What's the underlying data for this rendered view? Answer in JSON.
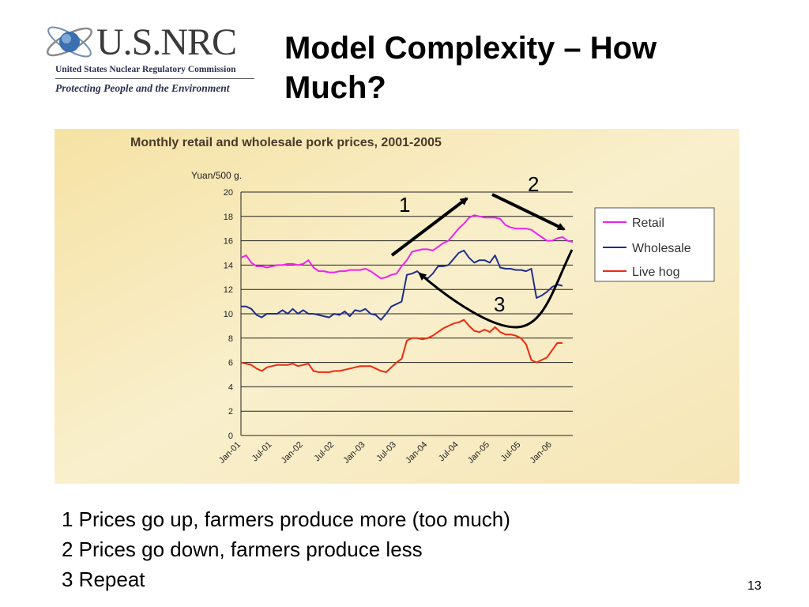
{
  "logo": {
    "main": "U.S.NRC",
    "subtitle": "United States Nuclear Regulatory Commission",
    "tagline": "Protecting People and the Environment"
  },
  "slide": {
    "title": "Model Complexity – How Much?",
    "notes": [
      "1 Prices go up, farmers produce more (too much)",
      "2 Prices go down, farmers produce less",
      "3 Repeat"
    ],
    "page_number": "13"
  },
  "annotations": {
    "arrow_1_label": "1",
    "arrow_2_label": "2",
    "arrow_3_label": "3"
  },
  "colors": {
    "retail": "#ee22ee",
    "wholesale": "#1f2f8c",
    "live_hog": "#ee2a10",
    "panel_bg": "#f7e7b0",
    "gridline": "#222222"
  },
  "chart_data": {
    "type": "line",
    "title": "Monthly retail and wholesale pork prices, 2001-2005",
    "ylabel": "Yuan/500 g.",
    "xlabel": "",
    "ylim": [
      0,
      20
    ],
    "yticks": [
      "0",
      "2",
      "4",
      "6",
      "8",
      "10",
      "12",
      "14",
      "16",
      "18",
      "20"
    ],
    "xtick_labels": [
      "Jan-01",
      "Jul-01",
      "Jan-02",
      "Jul-02",
      "Jan-03",
      "Jul-03",
      "Jan-04",
      "Jul-04",
      "Jan-05",
      "Jul-05",
      "Jan-06"
    ],
    "x_range_months": [
      0,
      64
    ],
    "legend_position": "right",
    "grid": true,
    "series": [
      {
        "name": "Retail",
        "x": [
          0,
          1,
          2,
          3,
          4,
          5,
          6,
          7,
          8,
          9,
          10,
          11,
          12,
          13,
          14,
          15,
          16,
          17,
          18,
          19,
          20,
          21,
          22,
          23,
          24,
          25,
          26,
          27,
          28,
          29,
          30,
          31,
          32,
          33,
          34,
          35,
          36,
          37,
          38,
          39,
          40,
          41,
          42,
          43,
          44,
          45,
          46,
          47,
          48,
          49,
          50,
          51,
          52,
          53,
          54,
          55,
          56,
          57,
          58,
          59,
          60,
          61,
          62,
          63,
          64
        ],
        "values": [
          14.6,
          14.8,
          14.2,
          13.9,
          13.9,
          13.8,
          13.9,
          14.0,
          14.0,
          14.1,
          14.1,
          14.0,
          14.1,
          14.4,
          13.8,
          13.5,
          13.5,
          13.4,
          13.4,
          13.5,
          13.5,
          13.6,
          13.6,
          13.6,
          13.7,
          13.5,
          13.2,
          12.9,
          13.0,
          13.2,
          13.3,
          13.9,
          14.4,
          15.1,
          15.2,
          15.3,
          15.3,
          15.2,
          15.5,
          15.8,
          16.0,
          16.5,
          17.0,
          17.4,
          17.9,
          18.1,
          18.0,
          17.9,
          17.9,
          17.9,
          17.8,
          17.3,
          17.1,
          17.0,
          17.0,
          17.0,
          16.9,
          16.6,
          16.3,
          16.0,
          16.0,
          16.2,
          16.3,
          16.0,
          15.9
        ]
      },
      {
        "name": "Wholesale",
        "x": [
          0,
          1,
          2,
          3,
          4,
          5,
          6,
          7,
          8,
          9,
          10,
          11,
          12,
          13,
          14,
          15,
          16,
          17,
          18,
          19,
          20,
          21,
          22,
          23,
          24,
          25,
          26,
          27,
          28,
          29,
          30,
          31,
          32,
          33,
          34,
          35,
          36,
          37,
          38,
          39,
          40,
          41,
          42,
          43,
          44,
          45,
          46,
          47,
          48,
          49,
          50,
          51,
          52,
          53,
          54,
          55,
          56,
          57,
          58,
          59,
          60,
          61,
          62
        ],
        "values": [
          10.6,
          10.6,
          10.4,
          9.9,
          9.7,
          10.0,
          10.0,
          10.0,
          10.3,
          10.0,
          10.4,
          10.0,
          10.3,
          10.0,
          10.0,
          9.9,
          9.8,
          9.7,
          10.0,
          9.9,
          10.2,
          9.8,
          10.3,
          10.2,
          10.4,
          10.0,
          9.9,
          9.5,
          10.0,
          10.6,
          10.8,
          11.0,
          13.2,
          13.3,
          13.5,
          13.1,
          12.9,
          13.3,
          13.9,
          13.9,
          14.0,
          14.5,
          15.0,
          15.2,
          14.6,
          14.2,
          14.4,
          14.4,
          14.2,
          14.8,
          13.8,
          13.7,
          13.7,
          13.6,
          13.6,
          13.5,
          13.7,
          11.3,
          11.5,
          11.8,
          12.2,
          12.4,
          12.3
        ]
      },
      {
        "name": "Live hog",
        "x": [
          0,
          1,
          2,
          3,
          4,
          5,
          6,
          7,
          8,
          9,
          10,
          11,
          12,
          13,
          14,
          15,
          16,
          17,
          18,
          19,
          20,
          21,
          22,
          23,
          24,
          25,
          26,
          27,
          28,
          29,
          30,
          31,
          32,
          33,
          34,
          35,
          36,
          37,
          38,
          39,
          40,
          41,
          42,
          43,
          44,
          45,
          46,
          47,
          48,
          49,
          50,
          51,
          52,
          53,
          54,
          55,
          56,
          57,
          58,
          59,
          60,
          61,
          62
        ],
        "values": [
          6.0,
          5.9,
          5.8,
          5.5,
          5.3,
          5.6,
          5.7,
          5.8,
          5.8,
          5.8,
          5.9,
          5.7,
          5.8,
          5.9,
          5.3,
          5.2,
          5.2,
          5.2,
          5.3,
          5.3,
          5.4,
          5.5,
          5.6,
          5.7,
          5.7,
          5.7,
          5.5,
          5.3,
          5.2,
          5.6,
          6.0,
          6.3,
          7.8,
          8.0,
          8.0,
          7.9,
          8.0,
          8.2,
          8.5,
          8.8,
          9.0,
          9.2,
          9.3,
          9.5,
          9.0,
          8.6,
          8.5,
          8.7,
          8.5,
          8.9,
          8.5,
          8.3,
          8.3,
          8.2,
          8.0,
          7.5,
          6.2,
          6.0,
          6.2,
          6.4,
          7.0,
          7.6,
          7.6
        ]
      }
    ]
  }
}
